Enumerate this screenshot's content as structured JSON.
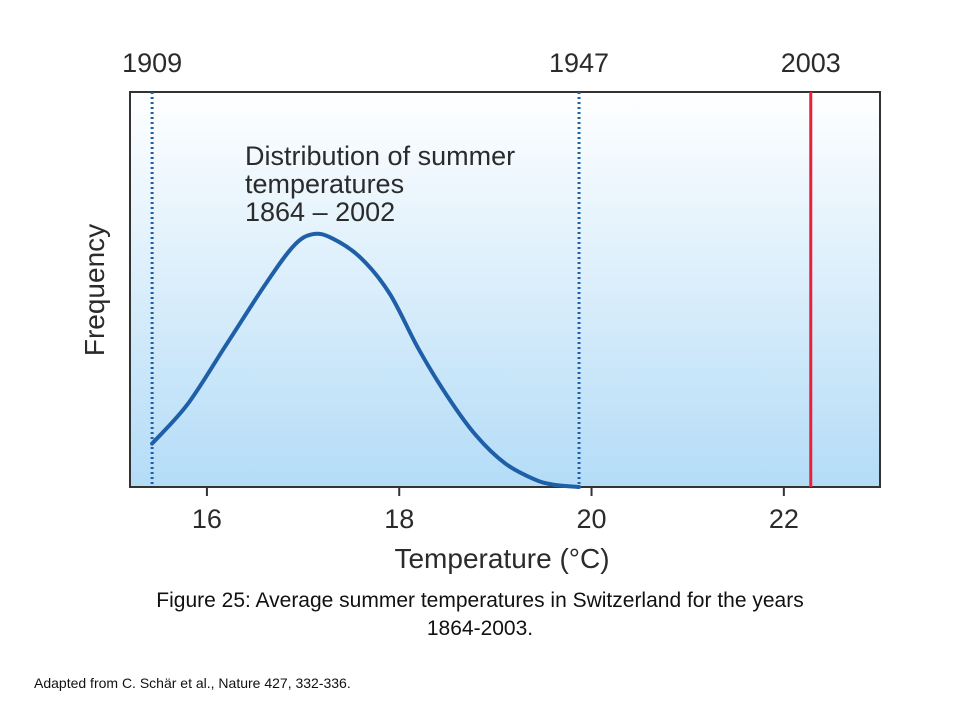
{
  "chart_data": {
    "type": "line",
    "xlabel": "Temperature (°C)",
    "ylabel": "Frequency",
    "xlim": [
      15.2,
      23.0
    ],
    "ylim": [
      0,
      1
    ],
    "x_ticks": [
      16,
      18,
      20,
      22
    ],
    "grid": false,
    "legend": "none",
    "annotation": [
      "Distribution of summer",
      "temperatures",
      "1864 – 2002"
    ],
    "series": [
      {
        "color": "#1f5fa8",
        "x": [
          15.43,
          15.8,
          16.2,
          16.6,
          16.9,
          17.1,
          17.3,
          17.6,
          17.9,
          18.2,
          18.5,
          18.8,
          19.1,
          19.4,
          19.6,
          19.87
        ],
        "y": [
          0.11,
          0.21,
          0.36,
          0.51,
          0.61,
          0.64,
          0.63,
          0.58,
          0.49,
          0.35,
          0.23,
          0.13,
          0.06,
          0.02,
          0.006,
          0.0
        ]
      }
    ],
    "events": [
      {
        "label": "1909",
        "x": 15.43,
        "style": "dotted",
        "color": "#1f5fa8"
      },
      {
        "label": "1947",
        "x": 19.87,
        "style": "dotted",
        "color": "#1f5fa8"
      },
      {
        "label": "2003",
        "x": 22.28,
        "style": "solid",
        "color": "#e8203a"
      }
    ],
    "background_gradient": [
      "#ffffff",
      "#b4dcf7"
    ]
  },
  "caption": {
    "line1": "Figure 25: Average summer temperatures in Switzerland for the years",
    "line2": "1864-2003."
  },
  "credit": "Adapted from C. Schär et al., Nature 427, 332-336."
}
